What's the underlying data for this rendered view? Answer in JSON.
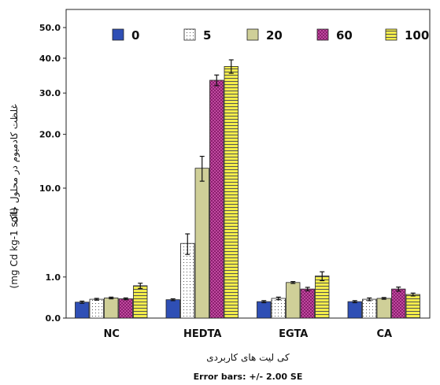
{
  "chart_data": {
    "type": "bar",
    "categories": [
      "NC",
      "HEDTA",
      "EGTA",
      "CA"
    ],
    "series": [
      {
        "name": "0",
        "values": [
          0.15,
          0.2,
          0.16,
          0.16
        ],
        "errors": [
          0.02,
          0.02,
          0.02,
          0.02
        ],
        "color": "#2f4fb5",
        "pattern": "solid"
      },
      {
        "name": "5",
        "values": [
          0.21,
          3.3,
          0.23,
          0.21
        ],
        "errors": [
          0.02,
          0.9,
          0.03,
          0.03
        ],
        "color": "#ffffff",
        "pattern": "dots"
      },
      {
        "name": "20",
        "values": [
          0.24,
          13.3,
          0.75,
          0.23
        ],
        "errors": [
          0.02,
          2.2,
          0.04,
          0.02
        ],
        "color": "#cfcf98",
        "pattern": "solid"
      },
      {
        "name": "60",
        "values": [
          0.22,
          33.5,
          0.5,
          0.5
        ],
        "errors": [
          0.02,
          1.5,
          0.06,
          0.07
        ],
        "color": "#8b1f6e",
        "pattern": "checker"
      },
      {
        "name": "100",
        "values": [
          0.62,
          37.5,
          1.05,
          0.33
        ],
        "errors": [
          0.1,
          2.0,
          0.22,
          0.04
        ],
        "color": "#f2ec4a",
        "pattern": "hlines"
      }
    ],
    "y_scale": "sqrt",
    "ylim": [
      0,
      50
    ],
    "yticks": [
      0.0,
      1.0,
      10.0,
      20.0,
      30.0,
      40.0,
      50.0
    ],
    "ytick_labels": [
      "0.0",
      "1.0",
      "10.0",
      "20.0",
      "30.0",
      "40.0",
      "50.0"
    ],
    "ylabel_lines": [
      "غلظت کادمیوم در محلول خاک",
      "(mg Cd kg-1 soil)"
    ],
    "xlabel": "کی لیت های کاربردی",
    "footnote": "Error bars: +/- 2.00 SE",
    "legend_position": "top"
  }
}
